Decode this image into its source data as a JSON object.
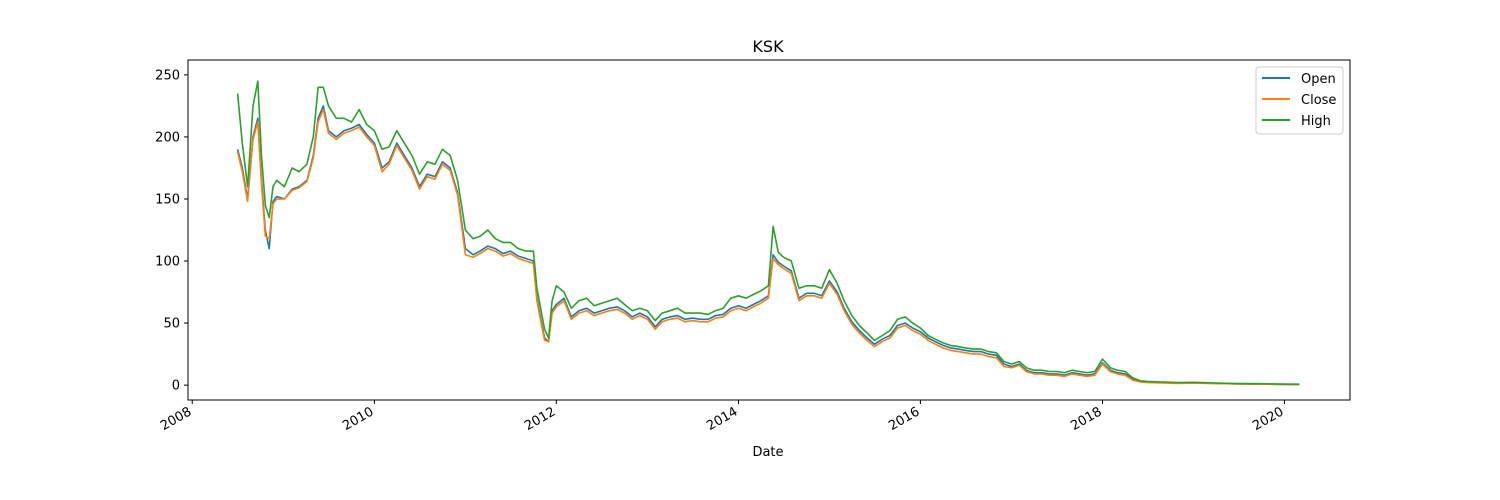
{
  "chart_data": {
    "type": "line",
    "title": "KSK",
    "xlabel": "Date",
    "ylabel": "",
    "x_ticks": [
      "2008",
      "2010",
      "2012",
      "2014",
      "2016",
      "2018",
      "2020"
    ],
    "y_ticks": [
      0,
      50,
      100,
      150,
      200,
      250
    ],
    "xlim": [
      "2007-12-15",
      "2020-09-20"
    ],
    "ylim": [
      -12,
      262
    ],
    "grid": false,
    "legend": "top-right",
    "x": [
      "2008-07-01",
      "2008-07-20",
      "2008-08-10",
      "2008-09-01",
      "2008-09-20",
      "2008-10-05",
      "2008-10-20",
      "2008-11-05",
      "2008-11-20",
      "2008-12-05",
      "2009-01-05",
      "2009-02-05",
      "2009-03-05",
      "2009-04-05",
      "2009-05-01",
      "2009-05-20",
      "2009-06-10",
      "2009-07-01",
      "2009-08-01",
      "2009-09-01",
      "2009-10-01",
      "2009-11-01",
      "2009-12-01",
      "2010-01-01",
      "2010-02-01",
      "2010-03-01",
      "2010-04-01",
      "2010-05-01",
      "2010-06-01",
      "2010-07-01",
      "2010-08-01",
      "2010-09-01",
      "2010-10-01",
      "2010-11-01",
      "2010-12-01",
      "2011-01-01",
      "2011-02-01",
      "2011-03-01",
      "2011-04-01",
      "2011-05-01",
      "2011-06-01",
      "2011-07-01",
      "2011-08-01",
      "2011-09-01",
      "2011-10-01",
      "2011-10-15",
      "2011-11-01",
      "2011-11-15",
      "2011-12-01",
      "2011-12-15",
      "2012-01-01",
      "2012-02-01",
      "2012-03-01",
      "2012-04-01",
      "2012-05-01",
      "2012-06-01",
      "2012-07-01",
      "2012-08-01",
      "2012-09-01",
      "2012-10-01",
      "2012-11-01",
      "2012-12-01",
      "2013-01-01",
      "2013-02-01",
      "2013-03-01",
      "2013-04-01",
      "2013-05-01",
      "2013-06-01",
      "2013-07-01",
      "2013-08-01",
      "2013-09-01",
      "2013-10-01",
      "2013-11-01",
      "2013-12-01",
      "2014-01-01",
      "2014-02-01",
      "2014-03-01",
      "2014-04-01",
      "2014-05-01",
      "2014-05-20",
      "2014-06-10",
      "2014-07-01",
      "2014-08-01",
      "2014-09-01",
      "2014-10-01",
      "2014-11-01",
      "2014-12-01",
      "2015-01-01",
      "2015-02-01",
      "2015-03-01",
      "2015-04-01",
      "2015-05-01",
      "2015-06-01",
      "2015-07-01",
      "2015-08-01",
      "2015-09-01",
      "2015-10-01",
      "2015-11-01",
      "2015-12-01",
      "2016-01-01",
      "2016-02-01",
      "2016-03-01",
      "2016-04-01",
      "2016-05-01",
      "2016-06-01",
      "2016-07-01",
      "2016-08-01",
      "2016-09-01",
      "2016-10-01",
      "2016-11-01",
      "2016-12-01",
      "2017-01-01",
      "2017-02-01",
      "2017-03-01",
      "2017-04-01",
      "2017-05-01",
      "2017-06-01",
      "2017-07-01",
      "2017-08-01",
      "2017-09-01",
      "2017-10-01",
      "2017-11-01",
      "2017-12-01",
      "2018-01-01",
      "2018-02-01",
      "2018-03-01",
      "2018-04-01",
      "2018-05-01",
      "2018-06-01",
      "2018-07-01",
      "2018-09-01",
      "2018-11-01",
      "2019-01-01",
      "2019-04-01",
      "2019-07-01",
      "2019-10-01",
      "2020-01-01",
      "2020-03-01"
    ],
    "series": [
      {
        "name": "Open",
        "color": "#1f77b4",
        "values": [
          190,
          175,
          150,
          200,
          215,
          165,
          125,
          110,
          148,
          152,
          150,
          158,
          160,
          165,
          185,
          215,
          225,
          205,
          200,
          205,
          207,
          210,
          202,
          195,
          175,
          180,
          195,
          185,
          175,
          160,
          170,
          168,
          180,
          175,
          155,
          110,
          105,
          108,
          112,
          110,
          106,
          108,
          104,
          102,
          100,
          70,
          52,
          38,
          35,
          60,
          65,
          70,
          55,
          60,
          62,
          58,
          60,
          62,
          63,
          60,
          55,
          58,
          55,
          47,
          53,
          55,
          56,
          53,
          54,
          53,
          53,
          56,
          57,
          62,
          64,
          62,
          65,
          68,
          72,
          105,
          99,
          96,
          92,
          70,
          74,
          74,
          72,
          84,
          75,
          62,
          51,
          44,
          38,
          33,
          37,
          40,
          48,
          50,
          46,
          43,
          38,
          35,
          32,
          30,
          29,
          28,
          27,
          27,
          25,
          24,
          17,
          15,
          17,
          12,
          10,
          10,
          9,
          9,
          8,
          10,
          9,
          8,
          9,
          18,
          12,
          10,
          9,
          5,
          3,
          2.5,
          2,
          1.5,
          1.8,
          1.3,
          1.0,
          0.8,
          0.6,
          0.5
        ]
      },
      {
        "name": "Close",
        "color": "#ff7f0e",
        "values": [
          188,
          172,
          148,
          198,
          212,
          162,
          120,
          118,
          146,
          150,
          150,
          157,
          159,
          164,
          183,
          212,
          222,
          203,
          198,
          203,
          205,
          208,
          200,
          193,
          172,
          178,
          193,
          183,
          173,
          158,
          168,
          166,
          178,
          173,
          153,
          105,
          103,
          106,
          110,
          108,
          104,
          106,
          102,
          100,
          98,
          68,
          50,
          36,
          35,
          58,
          63,
          68,
          53,
          58,
          60,
          56,
          58,
          60,
          61,
          58,
          53,
          56,
          53,
          45,
          51,
          53,
          54,
          51,
          52,
          51,
          51,
          54,
          55,
          60,
          62,
          60,
          63,
          66,
          70,
          102,
          97,
          94,
          90,
          68,
          72,
          72,
          70,
          82,
          73,
          60,
          49,
          42,
          36,
          31,
          35,
          38,
          46,
          48,
          44,
          41,
          36,
          33,
          30,
          28,
          27,
          26,
          25,
          25,
          23,
          22,
          15,
          14,
          16,
          11,
          9,
          9,
          8,
          8,
          7,
          9,
          8,
          7,
          8,
          17,
          11,
          9,
          8,
          4,
          2.5,
          2,
          1.8,
          1.3,
          1.6,
          1.2,
          0.9,
          0.7,
          0.5,
          0.4
        ]
      },
      {
        "name": "High",
        "color": "#2ca02c",
        "values": [
          235,
          195,
          160,
          225,
          245,
          185,
          145,
          135,
          160,
          165,
          160,
          175,
          172,
          178,
          200,
          240,
          240,
          225,
          215,
          215,
          212,
          222,
          210,
          205,
          190,
          192,
          205,
          195,
          185,
          170,
          180,
          178,
          190,
          185,
          165,
          125,
          118,
          120,
          125,
          118,
          115,
          115,
          110,
          108,
          108,
          78,
          60,
          45,
          38,
          68,
          80,
          75,
          62,
          68,
          70,
          64,
          66,
          68,
          70,
          65,
          60,
          62,
          60,
          52,
          58,
          60,
          62,
          58,
          58,
          58,
          57,
          60,
          62,
          70,
          72,
          70,
          73,
          76,
          80,
          128,
          107,
          103,
          100,
          78,
          80,
          80,
          78,
          93,
          82,
          68,
          56,
          48,
          42,
          36,
          40,
          44,
          53,
          55,
          50,
          46,
          40,
          37,
          34,
          32,
          31,
          30,
          29,
          29,
          27,
          26,
          19,
          17,
          19,
          14,
          12,
          12,
          11,
          11,
          10,
          12,
          11,
          10,
          11,
          21,
          14,
          12,
          11,
          6,
          3.5,
          3,
          2.5,
          2,
          2.3,
          1.7,
          1.3,
          1.1,
          0.8,
          0.7
        ]
      }
    ]
  }
}
